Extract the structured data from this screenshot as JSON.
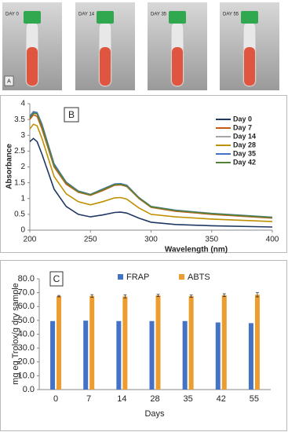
{
  "photos": [
    {
      "label": "DAY 0"
    },
    {
      "label": "DAY 14"
    },
    {
      "label": "DAY 35"
    },
    {
      "label": "DAY 55"
    }
  ],
  "photo_panel_label": "A",
  "chart_data": [
    {
      "type": "line",
      "panel_label": "B",
      "x_label": "Wavelength (nm)",
      "y_label": "Absorbance",
      "x": [
        200,
        203,
        206,
        210,
        220,
        230,
        240,
        250,
        260,
        270,
        275,
        280,
        290,
        300,
        320,
        350,
        400
      ],
      "series": [
        {
          "name": "Day 0",
          "color": "#1f3864",
          "values": [
            2.8,
            2.9,
            2.8,
            2.4,
            1.3,
            0.75,
            0.5,
            0.42,
            0.48,
            0.56,
            0.57,
            0.54,
            0.38,
            0.25,
            0.18,
            0.14,
            0.1
          ]
        },
        {
          "name": "Day 7",
          "color": "#c55a11",
          "values": [
            3.5,
            3.65,
            3.6,
            3.2,
            2.0,
            1.45,
            1.2,
            1.1,
            1.25,
            1.42,
            1.43,
            1.38,
            1.0,
            0.72,
            0.6,
            0.5,
            0.38
          ]
        },
        {
          "name": "Day 14",
          "color": "#a5a5a5",
          "values": [
            3.55,
            3.72,
            3.7,
            3.3,
            2.05,
            1.5,
            1.22,
            1.12,
            1.28,
            1.45,
            1.46,
            1.4,
            1.02,
            0.74,
            0.62,
            0.52,
            0.4
          ]
        },
        {
          "name": "Day 28",
          "color": "#bf9000",
          "values": [
            3.2,
            3.35,
            3.3,
            2.9,
            1.7,
            1.15,
            0.9,
            0.8,
            0.9,
            1.02,
            1.03,
            0.98,
            0.7,
            0.5,
            0.42,
            0.35,
            0.27
          ]
        },
        {
          "name": "Day 35",
          "color": "#4472c4",
          "values": [
            3.6,
            3.75,
            3.72,
            3.35,
            2.1,
            1.52,
            1.24,
            1.13,
            1.3,
            1.46,
            1.47,
            1.42,
            1.03,
            0.75,
            0.63,
            0.53,
            0.41
          ]
        },
        {
          "name": "Day 42",
          "color": "#548235",
          "values": [
            3.55,
            3.7,
            3.68,
            3.3,
            2.05,
            1.5,
            1.22,
            1.12,
            1.28,
            1.44,
            1.45,
            1.4,
            1.02,
            0.74,
            0.62,
            0.52,
            0.4
          ]
        }
      ],
      "xlim": [
        200,
        400
      ],
      "xticks": [
        200,
        250,
        300,
        350,
        400
      ],
      "ylim": [
        0,
        4
      ],
      "yticks": [
        0,
        0.5,
        1,
        1.5,
        2,
        2.5,
        3,
        3.5,
        4
      ]
    },
    {
      "type": "bar",
      "panel_label": "C",
      "x_label": "Days",
      "y_label": "mg eq Trolox/g dry sample",
      "categories": [
        "0",
        "7",
        "14",
        "28",
        "35",
        "42",
        "55"
      ],
      "series": [
        {
          "name": "FRAP",
          "color": "#4472c4",
          "values": [
            49.5,
            49.8,
            49.5,
            49.5,
            49.5,
            48.5,
            48
          ]
        },
        {
          "name": "ABTS",
          "color": "#ed9c2f",
          "values": [
            67.5,
            67.6,
            67.3,
            68,
            67.5,
            68.2,
            68.5
          ],
          "errors": [
            0.5,
            1,
            1.2,
            0.8,
            0.8,
            1,
            1.5
          ]
        }
      ],
      "ylim": [
        0,
        80
      ],
      "yticks": [
        {
          "value": 0,
          "label": "0.0"
        },
        {
          "value": 10,
          "label": "10.0"
        },
        {
          "value": 20,
          "label": "20.0"
        },
        {
          "value": 30,
          "label": "30.0"
        },
        {
          "value": 40,
          "label": "40.0"
        },
        {
          "value": 50,
          "label": "50.0"
        },
        {
          "value": 60,
          "label": "60.0"
        },
        {
          "value": 70,
          "label": "70.0"
        },
        {
          "value": 80,
          "label": "80.0"
        }
      ]
    }
  ]
}
